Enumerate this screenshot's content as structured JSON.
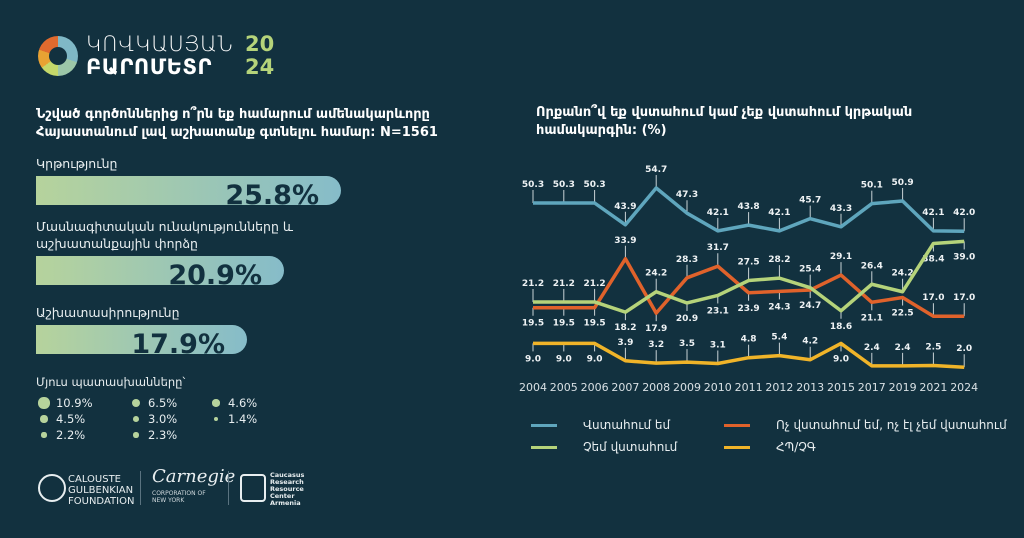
{
  "brand": {
    "line1": "ԿՈՎԿԱՍՅԱՆ",
    "line2": "ԲԱՐՈՄԵՏՐ",
    "year_top": "20",
    "year_bottom": "24"
  },
  "left": {
    "title": "Նշված գործոններից ո՞րն եք համարում ամենակարևորը Հայաստանում լավ աշխատանք գտնելու համար: N=1561",
    "bars": [
      {
        "label": "Կրթությունը",
        "value": 25.8,
        "text": "25.8%"
      },
      {
        "label": "Մասնագիտական ունակությունները և աշխատանքային փորձը",
        "value": 20.9,
        "text": "20.9%"
      },
      {
        "label": "Աշխատասիրությունը",
        "value": 17.9,
        "text": "17.9%"
      }
    ],
    "others_title": "Մյուս պատասխանները՝",
    "others": [
      {
        "value": 10.9,
        "text": "10.9%"
      },
      {
        "value": 6.5,
        "text": "6.5%"
      },
      {
        "value": 4.6,
        "text": "4.6%"
      },
      {
        "value": 4.5,
        "text": "4.5%"
      },
      {
        "value": 3.0,
        "text": "3.0%"
      },
      {
        "value": 1.4,
        "text": "1.4%"
      },
      {
        "value": 2.2,
        "text": "2.2%"
      },
      {
        "value": 2.3,
        "text": "2.3%"
      }
    ]
  },
  "chart_data": {
    "type": "line",
    "title": "Որքանո՞վ եք վստահում կամ չեք վստահում կրթական համակարգին: (%)",
    "categories": [
      "2004",
      "2005",
      "2006",
      "2007",
      "2008",
      "2009",
      "2010",
      "2011",
      "2012",
      "2013",
      "2015",
      "2017",
      "2019",
      "2021",
      "2024"
    ],
    "series": [
      {
        "name": "Վստահում եմ",
        "color": "#5fa6bd",
        "values": [
          50.3,
          50.3,
          50.3,
          43.9,
          54.7,
          47.3,
          42.1,
          43.8,
          42.1,
          45.7,
          43.3,
          50.1,
          50.9,
          42.1,
          42.0
        ]
      },
      {
        "name": "Ոչ վստահում եմ, ոչ էլ չեմ վստահում",
        "color": "#e0622b",
        "values": [
          19.5,
          19.5,
          19.5,
          33.9,
          17.9,
          28.3,
          31.7,
          23.9,
          24.3,
          24.7,
          29.1,
          21.1,
          22.5,
          17.0,
          17.0
        ]
      },
      {
        "name": "Չեմ վստահում",
        "color": "#b5d37a",
        "values": [
          21.2,
          21.2,
          21.2,
          18.2,
          24.2,
          20.9,
          23.1,
          27.5,
          28.2,
          25.4,
          18.6,
          26.4,
          24.2,
          38.4,
          39.0
        ]
      },
      {
        "name": "ՀՊ/ՉԳ",
        "color": "#f0b429",
        "values": [
          9.0,
          9.0,
          9.0,
          3.9,
          3.2,
          3.5,
          3.1,
          4.8,
          5.4,
          4.2,
          9.0,
          2.4,
          2.4,
          2.5,
          2.0
        ]
      }
    ],
    "legend_position": "bottom",
    "grid": false
  },
  "footer": {
    "gulbenkian": "CALOUSTE GULBENKIAN FOUNDATION",
    "carnegie": "Carnegie",
    "carnegie_sub": "CORPORATION OF NEW YORK",
    "crrc": "Caucasus Research Resource Center Armenia"
  }
}
